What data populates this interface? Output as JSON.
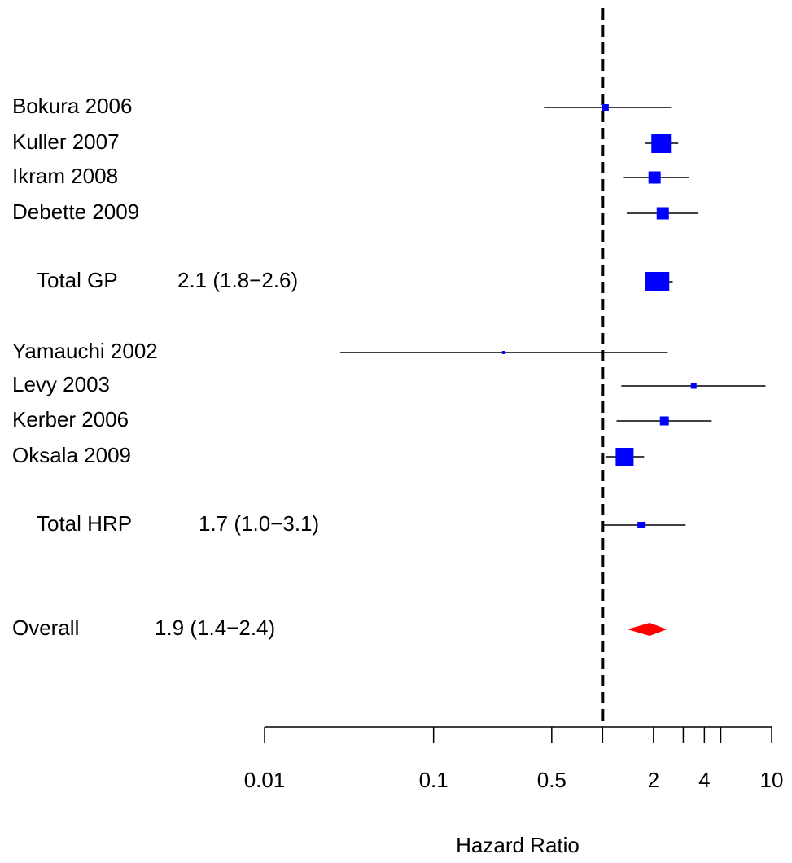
{
  "chart_data": {
    "type": "forest",
    "xlabel": "Hazard Ratio",
    "log_x": true,
    "xlim": [
      0.01,
      10
    ],
    "xticks": [
      0.01,
      0.1,
      0.5,
      2,
      4,
      10
    ],
    "minor_xticks": [
      1,
      3,
      5
    ],
    "ref_line": 1,
    "box_color": "#0000ff",
    "diamond_color": "#ff0000",
    "rows": [
      {
        "kind": "study",
        "label": "Bokura 2006",
        "est": 1.04,
        "lo": 0.45,
        "hi": 2.54,
        "weight": 8
      },
      {
        "kind": "study",
        "label": "Kuller 2007",
        "est": 2.22,
        "lo": 1.78,
        "hi": 2.8,
        "weight": 24
      },
      {
        "kind": "study",
        "label": "Ikram 2008",
        "est": 2.03,
        "lo": 1.32,
        "hi": 3.23,
        "weight": 15
      },
      {
        "kind": "study",
        "label": "Debette 2009",
        "est": 2.27,
        "lo": 1.39,
        "hi": 3.66,
        "weight": 15
      },
      {
        "kind": "subtotal",
        "label": "Total GP",
        "value_label": "2.1 (1.8−2.6)",
        "est": 2.1,
        "lo": 1.8,
        "hi": 2.6,
        "weight": 30
      },
      {
        "kind": "study",
        "label": "Yamauchi 2002",
        "est": 0.26,
        "lo": 0.028,
        "hi": 2.43,
        "weight": 4
      },
      {
        "kind": "study",
        "label": "Levy 2003",
        "est": 3.46,
        "lo": 1.29,
        "hi": 9.2,
        "weight": 7
      },
      {
        "kind": "study",
        "label": "Kerber 2006",
        "est": 2.32,
        "lo": 1.21,
        "hi": 4.42,
        "weight": 11
      },
      {
        "kind": "study",
        "label": "Oksala 2009",
        "est": 1.35,
        "lo": 1.04,
        "hi": 1.76,
        "weight": 22
      },
      {
        "kind": "subtotal",
        "label": "Total HRP",
        "value_label": "1.7 (1.0−3.1)",
        "est": 1.7,
        "lo": 1.0,
        "hi": 3.1,
        "weight": 10
      },
      {
        "kind": "overall",
        "label": "Overall",
        "value_label": "1.9 (1.4−2.4)",
        "est": 1.9,
        "lo": 1.4,
        "hi": 2.4,
        "weight": 16
      }
    ]
  }
}
